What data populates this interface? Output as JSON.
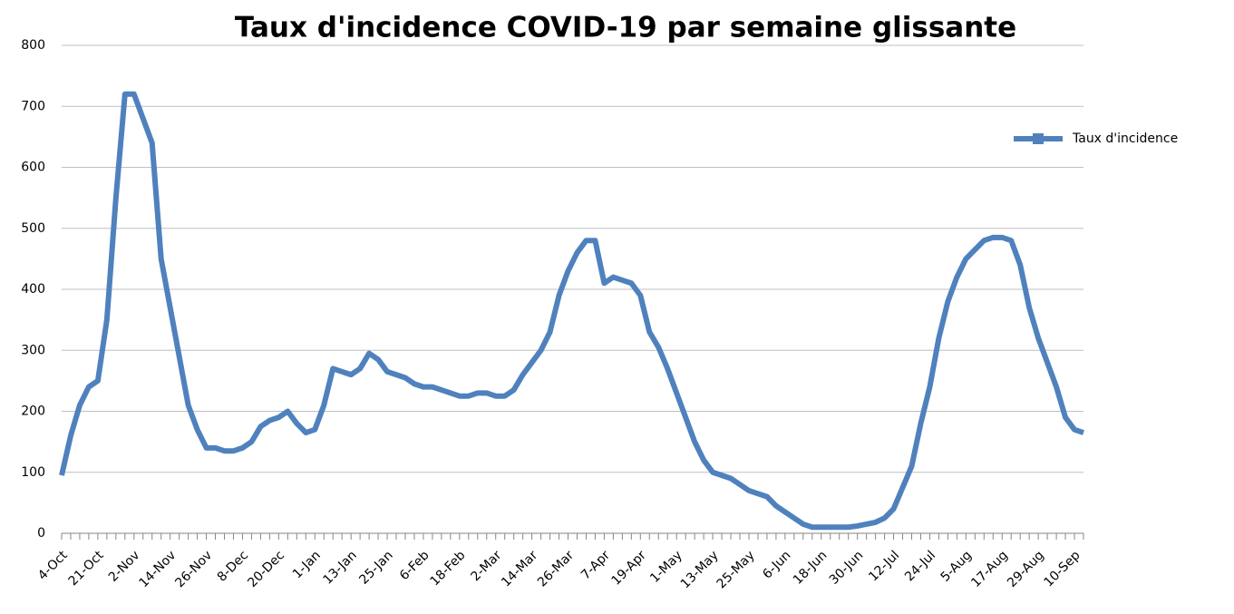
{
  "chart_data": {
    "type": "line",
    "title": "Taux d'incidence COVID-19 par semaine glissante",
    "categories": [
      "4-Oct",
      null,
      null,
      null,
      "21-Oct",
      null,
      null,
      null,
      "2-Nov",
      null,
      null,
      null,
      "14-Nov",
      null,
      null,
      null,
      "26-Nov",
      null,
      null,
      null,
      "8-Dec",
      null,
      null,
      null,
      "20-Dec",
      null,
      null,
      null,
      "1-Jan",
      null,
      null,
      null,
      "13-Jan",
      null,
      null,
      null,
      "25-Jan",
      null,
      null,
      null,
      "6-Feb",
      null,
      null,
      null,
      "18-Feb",
      null,
      null,
      null,
      "2-Mar",
      null,
      null,
      null,
      "14-Mar",
      null,
      null,
      null,
      "26-Mar",
      null,
      null,
      null,
      "7-Apr",
      null,
      null,
      null,
      "19-Apr",
      null,
      null,
      null,
      "1-May",
      null,
      null,
      null,
      "13-May",
      null,
      null,
      null,
      "25-May",
      null,
      null,
      null,
      "6-Jun",
      null,
      null,
      null,
      "18-Jun",
      null,
      null,
      null,
      "30-Jun",
      null,
      null,
      null,
      "12-Jul",
      null,
      null,
      null,
      "24-Jul",
      null,
      null,
      null,
      "5-Aug",
      null,
      null,
      null,
      "17-Aug",
      null,
      null,
      null,
      "29-Aug",
      null,
      null,
      null,
      "10-Sep",
      null
    ],
    "series": [
      {
        "name": "Taux d'incidence",
        "color": "#4f81bd",
        "values": [
          95,
          160,
          210,
          240,
          250,
          350,
          550,
          720,
          720,
          680,
          640,
          450,
          370,
          290,
          210,
          170,
          140,
          140,
          135,
          135,
          140,
          150,
          175,
          185,
          190,
          200,
          180,
          165,
          170,
          210,
          270,
          265,
          260,
          270,
          295,
          285,
          265,
          260,
          255,
          245,
          240,
          240,
          235,
          230,
          225,
          225,
          230,
          230,
          225,
          225,
          235,
          260,
          280,
          300,
          330,
          390,
          430,
          460,
          480,
          480,
          410,
          420,
          415,
          410,
          390,
          330,
          305,
          270,
          230,
          190,
          150,
          120,
          100,
          95,
          90,
          80,
          70,
          65,
          60,
          45,
          35,
          25,
          15,
          10,
          10,
          10,
          10,
          10,
          12,
          15,
          18,
          25,
          40,
          75,
          110,
          180,
          240,
          320,
          380,
          420,
          450,
          465,
          480,
          485,
          485,
          480,
          440,
          370,
          320,
          280,
          240,
          190,
          170,
          165
        ]
      }
    ],
    "ylim": [
      0,
      800
    ],
    "yticks": [
      0,
      100,
      200,
      300,
      400,
      500,
      600,
      700,
      800
    ],
    "grid": true,
    "legend": "right"
  }
}
